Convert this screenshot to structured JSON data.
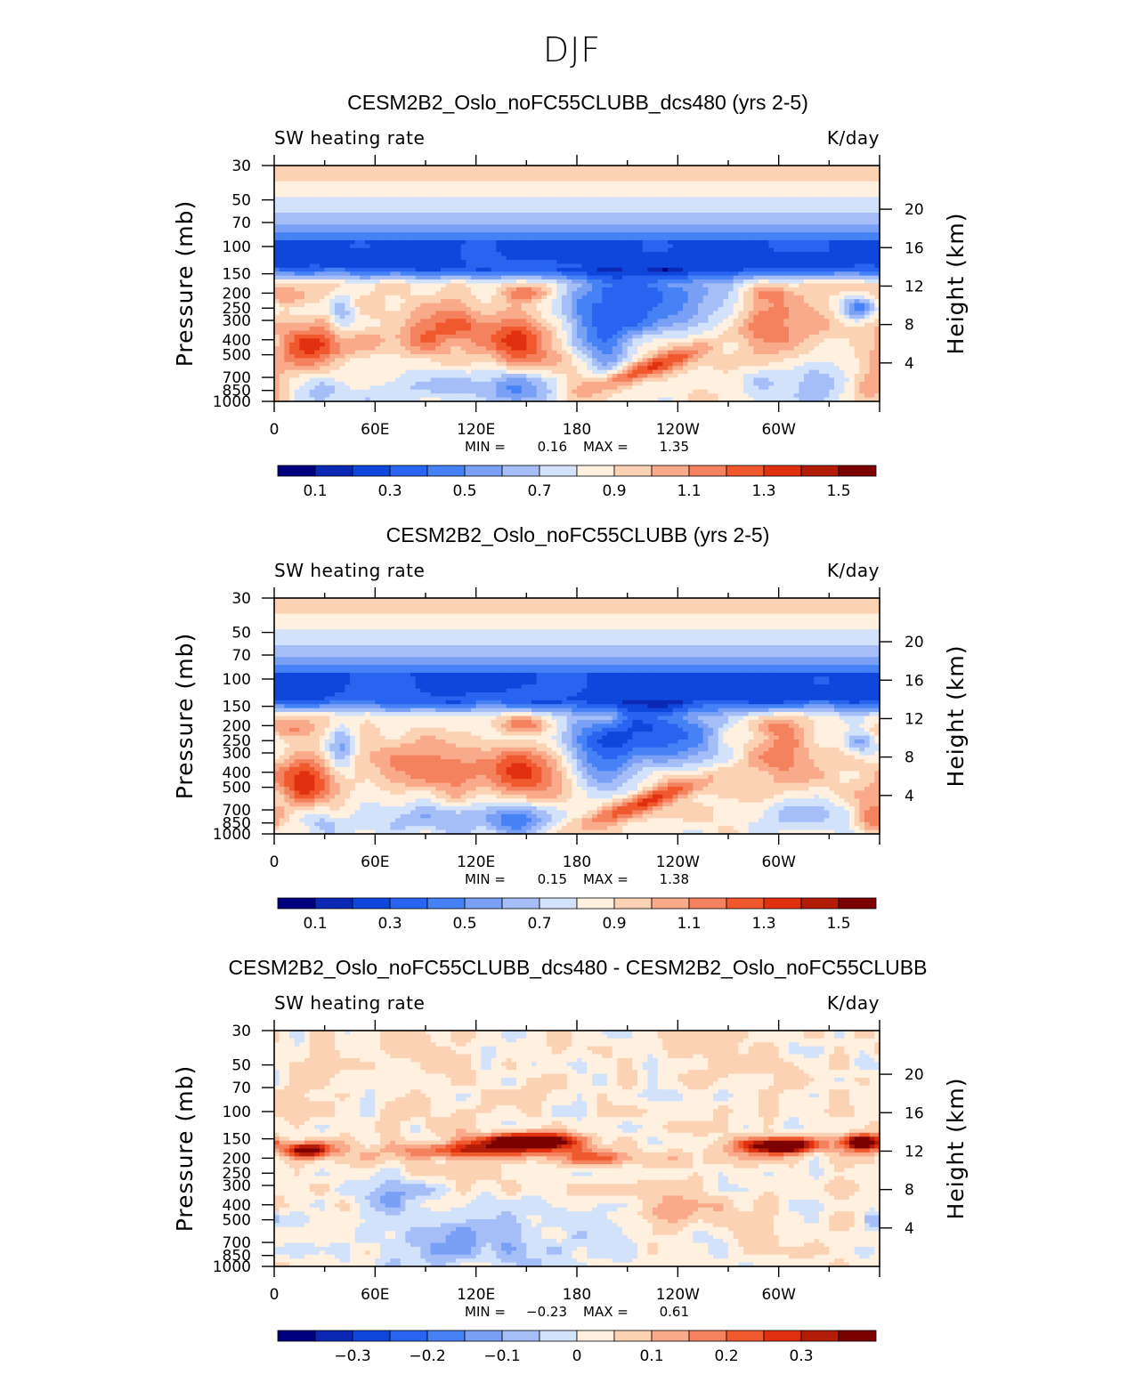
{
  "figure": {
    "title": "DJF"
  },
  "chart_data": [
    {
      "type": "heatmap",
      "title": "CESM2B2_Oslo_noFC55CLUBB_dcs480 (yrs 2-5)",
      "left_label": "SW heating rate",
      "right_label": "K/day",
      "ylabel": "Pressure (mb)",
      "ylabel_right": "Height (km)",
      "x_ticks": [
        "0",
        "60E",
        "120E",
        "180",
        "120W",
        "60W"
      ],
      "y_ticks": [
        "30",
        "50",
        "70",
        "100",
        "150",
        "200",
        "250",
        "300",
        "400",
        "500",
        "700",
        "850",
        "1000"
      ],
      "y_right_ticks": [
        "20",
        "16",
        "12",
        "8",
        "4"
      ],
      "min_label": "MIN =",
      "min": "0.16",
      "max_label": "MAX =",
      "max": "1.35",
      "colorbar_labels": [
        "0.1",
        "0.3",
        "0.5",
        "0.7",
        "0.9",
        "1.1",
        "1.3",
        "1.5"
      ]
    },
    {
      "type": "heatmap",
      "title": "CESM2B2_Oslo_noFC55CLUBB (yrs 2-5)",
      "left_label": "SW heating rate",
      "right_label": "K/day",
      "ylabel": "Pressure (mb)",
      "ylabel_right": "Height (km)",
      "x_ticks": [
        "0",
        "60E",
        "120E",
        "180",
        "120W",
        "60W"
      ],
      "y_ticks": [
        "30",
        "50",
        "70",
        "100",
        "150",
        "200",
        "250",
        "300",
        "400",
        "500",
        "700",
        "850",
        "1000"
      ],
      "y_right_ticks": [
        "20",
        "16",
        "12",
        "8",
        "4"
      ],
      "min_label": "MIN =",
      "min": "0.15",
      "max_label": "MAX =",
      "max": "1.38",
      "colorbar_labels": [
        "0.1",
        "0.3",
        "0.5",
        "0.7",
        "0.9",
        "1.1",
        "1.3",
        "1.5"
      ]
    },
    {
      "type": "heatmap",
      "title": "CESM2B2_Oslo_noFC55CLUBB_dcs480 - CESM2B2_Oslo_noFC55CLUBB",
      "left_label": "SW heating rate",
      "right_label": "K/day",
      "ylabel": "Pressure (mb)",
      "ylabel_right": "Height (km)",
      "x_ticks": [
        "0",
        "60E",
        "120E",
        "180",
        "120W",
        "60W"
      ],
      "y_ticks": [
        "30",
        "50",
        "70",
        "100",
        "150",
        "200",
        "250",
        "300",
        "400",
        "500",
        "700",
        "850",
        "1000"
      ],
      "y_right_ticks": [
        "20",
        "16",
        "12",
        "8",
        "4"
      ],
      "min_label": "MIN =",
      "min": "−0.23",
      "max_label": "MAX =",
      "max": "0.61",
      "colorbar_labels": [
        "−0.3",
        "−0.2",
        "−0.1",
        "0",
        "0.1",
        "0.2",
        "0.3"
      ]
    }
  ],
  "palette": [
    "#00007f",
    "#0a28b4",
    "#0f46dc",
    "#2864f0",
    "#4682f5",
    "#7aa0f5",
    "#a5bef8",
    "#d2e2fa",
    "#fff0e0",
    "#fcd2b4",
    "#f8aa8a",
    "#f5825f",
    "#f0582e",
    "#e03010",
    "#b41c0a",
    "#7c0000"
  ]
}
